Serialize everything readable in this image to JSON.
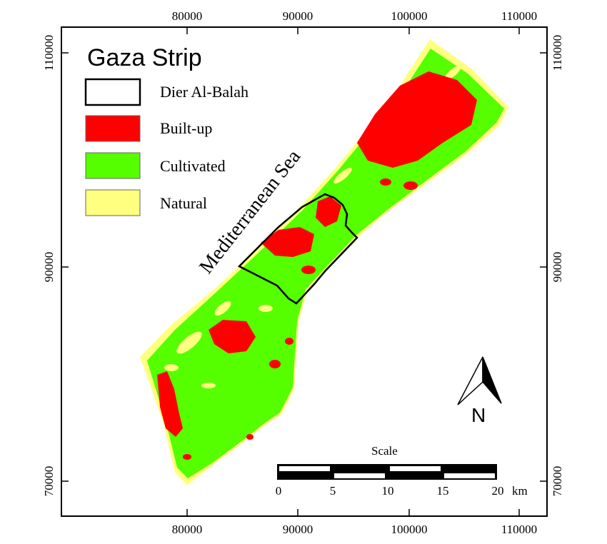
{
  "map": {
    "title": "Gaza Strip",
    "sea_label": "Mediterranean Sea",
    "x_ticks": [
      "80000",
      "90000",
      "100000",
      "110000"
    ],
    "y_ticks": [
      "110000",
      "90000",
      "70000"
    ],
    "legend": [
      {
        "label": "Dier Al-Balah",
        "color": "#ffffff",
        "icon": "outline-box"
      },
      {
        "label": "Built-up",
        "color": "#ff0000",
        "icon": "filled-box"
      },
      {
        "label": "Cultivated",
        "color": "#55ff00",
        "icon": "filled-box"
      },
      {
        "label": "Natural",
        "color": "#ffff80",
        "icon": "filled-box"
      }
    ],
    "scale": {
      "title": "Scale",
      "labels": [
        "0",
        "5",
        "10",
        "15",
        "20"
      ],
      "unit": "km"
    },
    "north_label": "N",
    "colors": {
      "built_up": "#ff0000",
      "cultivated": "#55ff00",
      "natural": "#ffff80",
      "frame": "#000000"
    }
  }
}
